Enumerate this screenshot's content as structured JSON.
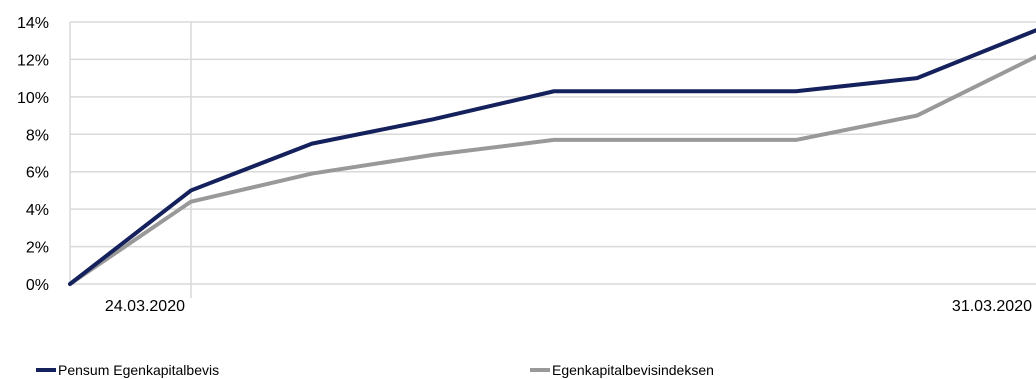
{
  "chart_data": {
    "type": "line",
    "x": [
      "",
      "24.03.2020",
      "",
      "",
      "",
      "",
      "",
      "",
      "31.03.2020"
    ],
    "x_tick_labels": [
      "24.03.2020",
      "31.03.2020"
    ],
    "y_tick_labels": [
      "0%",
      "2%",
      "4%",
      "6%",
      "8%",
      "10%",
      "12%",
      "14%"
    ],
    "ylim": [
      0,
      14
    ],
    "grid": true,
    "legend_position": "bottom",
    "series": [
      {
        "name": "Pensum Egenkapitalbevis",
        "color": "#14215c",
        "values": [
          0,
          5.0,
          7.5,
          8.8,
          10.3,
          10.3,
          10.3,
          11.0,
          13.6
        ]
      },
      {
        "name": "Egenkapitalbevisindeksen",
        "color": "#999999",
        "values": [
          0,
          4.4,
          5.9,
          6.9,
          7.7,
          7.7,
          7.7,
          9.0,
          12.2
        ]
      }
    ]
  }
}
